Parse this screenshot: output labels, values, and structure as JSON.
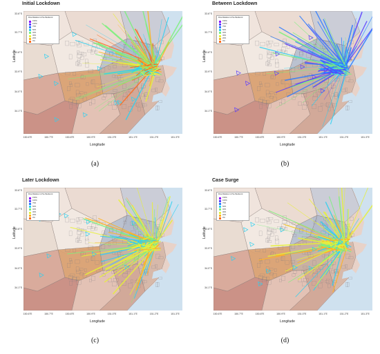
{
  "colors": {
    "sea": "#cfe1ef",
    "land_base": "#e9d6cf",
    "flow_palette": [
      "#8b00ff",
      "#5b3cff",
      "#2e7bff",
      "#2fd0f0",
      "#7cf07c",
      "#e6f03a",
      "#ffb320",
      "#ff6a1a"
    ]
  },
  "axes": {
    "ylabel": "Latitude",
    "xlabel": "Longitude",
    "lat_ticks": [
      "33.6°S",
      "33.7°S",
      "33.8°S",
      "33.9°S",
      "34.0°S",
      "34.1°S"
    ],
    "lon_ticks": [
      "150.6°E",
      "150.7°E",
      "150.8°E",
      "150.9°E",
      "151.0°E",
      "151.1°E",
      "151.2°E",
      "151.3°E"
    ]
  },
  "legend": {
    "title": "Flow Relative to Pre-Pandemic",
    "entries": [
      "150%",
      "100%",
      "75%",
      "50%",
      "40%",
      "30%",
      "20%",
      "0%"
    ]
  },
  "panels": [
    {
      "title": "Initial Lockdown",
      "caption": "(a)",
      "style": "mixed"
    },
    {
      "title": "Between Lockdown",
      "caption": "(b)",
      "style": "blue"
    },
    {
      "title": "Later Lockdown",
      "caption": "(c)",
      "style": "yellow"
    },
    {
      "title": "Case Surge",
      "caption": "(d)",
      "style": "yellow"
    }
  ]
}
